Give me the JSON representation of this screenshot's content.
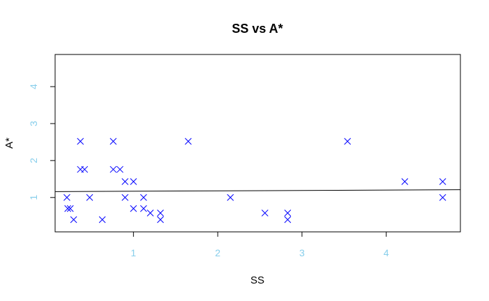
{
  "chart_data": {
    "type": "scatter",
    "title": "SS vs A*",
    "xlabel": "SS",
    "ylabel": "A*",
    "xlim": [
      0.07,
      4.88
    ],
    "ylim": [
      0.07,
      4.87
    ],
    "x_ticks": [
      1,
      2,
      3,
      4
    ],
    "y_ticks": [
      1,
      2,
      3,
      4
    ],
    "tick_color": "#87ceeb",
    "point_color": "#0000ff",
    "line_color": "#000000",
    "marker": "x",
    "points": [
      {
        "x": 0.21,
        "y": 1.0
      },
      {
        "x": 0.22,
        "y": 0.7
      },
      {
        "x": 0.25,
        "y": 0.7
      },
      {
        "x": 0.29,
        "y": 0.4
      },
      {
        "x": 0.37,
        "y": 2.52
      },
      {
        "x": 0.37,
        "y": 1.76
      },
      {
        "x": 0.42,
        "y": 1.76
      },
      {
        "x": 0.48,
        "y": 1.0
      },
      {
        "x": 0.63,
        "y": 0.4
      },
      {
        "x": 0.76,
        "y": 2.52
      },
      {
        "x": 0.76,
        "y": 1.76
      },
      {
        "x": 0.84,
        "y": 1.76
      },
      {
        "x": 0.9,
        "y": 1.43
      },
      {
        "x": 0.9,
        "y": 1.0
      },
      {
        "x": 1.0,
        "y": 1.43
      },
      {
        "x": 1.0,
        "y": 0.7
      },
      {
        "x": 1.12,
        "y": 1.0
      },
      {
        "x": 1.12,
        "y": 0.7
      },
      {
        "x": 1.2,
        "y": 0.58
      },
      {
        "x": 1.32,
        "y": 0.58
      },
      {
        "x": 1.32,
        "y": 0.4
      },
      {
        "x": 1.65,
        "y": 2.52
      },
      {
        "x": 2.15,
        "y": 1.0
      },
      {
        "x": 2.56,
        "y": 0.58
      },
      {
        "x": 2.83,
        "y": 0.58
      },
      {
        "x": 2.83,
        "y": 0.4
      },
      {
        "x": 3.54,
        "y": 2.52
      },
      {
        "x": 4.22,
        "y": 1.43
      },
      {
        "x": 4.67,
        "y": 1.43
      },
      {
        "x": 4.67,
        "y": 1.0
      }
    ],
    "fit_line": {
      "x": [
        0.07,
        4.88
      ],
      "y": [
        1.16,
        1.21
      ]
    },
    "grid": false,
    "legend": "none"
  }
}
